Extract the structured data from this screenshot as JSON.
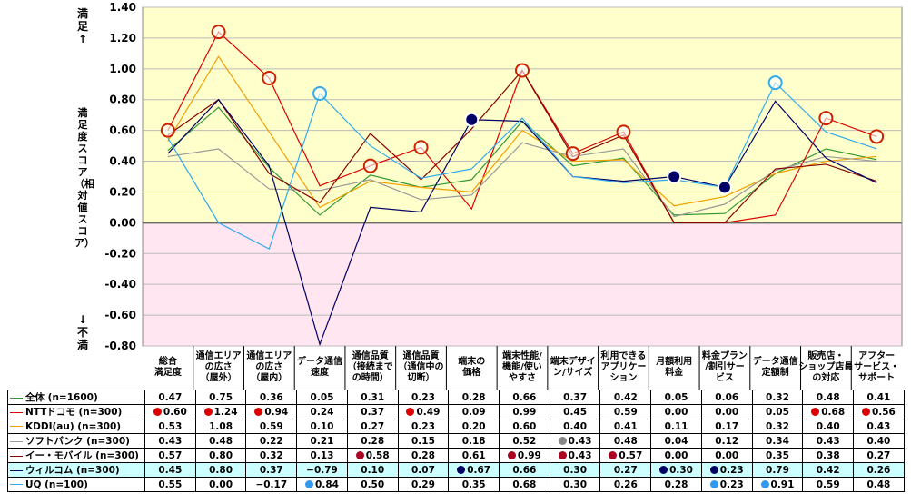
{
  "chart_data": {
    "type": "line",
    "ylabel_top": "満足↑",
    "ylabel_mid": "満足度スコア（相対値スコア）",
    "ylabel_bottom": "↓不満",
    "ylim": [
      -0.8,
      1.4
    ],
    "yticks": [
      "1.40",
      "1.20",
      "1.00",
      "0.80",
      "0.60",
      "0.40",
      "0.20",
      "0.00",
      "-0.20",
      "-0.40",
      "-0.60",
      "-0.80"
    ],
    "categories": [
      "総合満足度",
      "通信エリアの広さ（屋外）",
      "通信エリアの広さ（屋内）",
      "データ通信速度",
      "通信品質（接続までの時間）",
      "通信品質（通信中の切断）",
      "端末の価格",
      "端末性能/機能/使いやすさ",
      "端末デザイン/サイズ",
      "利用できるアプリケーション",
      "月額利用料金",
      "料金プラン/割引サービス",
      "データ通信定額制",
      "販売店・ショップ店員の対応",
      "アフターサービス・サポート"
    ],
    "categories_display": [
      "総合\n満足度",
      "通信エリア\nの広さ\n（屋外）",
      "通信エリア\nの広さ\n（屋内）",
      "データ通信\n速度",
      "通信品質\n（接続まで\nの時間）",
      "通信品質\n（通信中の\n切断）",
      "端末の\n価格",
      "端末性能/\n機能/使い\nやすさ",
      "端末デザイ\nン/サイズ",
      "利用できる\nアプリケー\nション",
      "月額利用\n料金",
      "料金プラン\n/割引サー\nビス",
      "データ通信\n定額制",
      "販売店・\nショップ店員\nの対応",
      "アフター\nサービス・\nサポート"
    ],
    "series": [
      {
        "name": "全体 (n=1600)",
        "color": "#339933",
        "values": [
          0.47,
          0.75,
          0.36,
          0.05,
          0.31,
          0.23,
          0.28,
          0.66,
          0.37,
          0.42,
          0.05,
          0.06,
          0.32,
          0.48,
          0.41
        ],
        "labels": [
          "0.47",
          "0.75",
          "0.36",
          "0.05",
          "0.31",
          "0.23",
          "0.28",
          "0.66",
          "0.37",
          "0.42",
          "0.05",
          "0.06",
          "0.32",
          "0.48",
          "0.41"
        ],
        "markers": []
      },
      {
        "name": "NTTドコモ (n=300)",
        "color": "#dd0000",
        "values": [
          0.6,
          1.24,
          0.94,
          0.24,
          0.37,
          0.49,
          0.09,
          0.99,
          0.45,
          0.59,
          0.0,
          0.0,
          0.05,
          0.68,
          0.56
        ],
        "labels": [
          "0.60",
          "1.24",
          "0.94",
          "0.24",
          "0.37",
          "0.49",
          "0.09",
          "0.99",
          "0.45",
          "0.59",
          "0.00",
          "0.00",
          "0.05",
          "0.68",
          "0.56"
        ],
        "markers": [
          0,
          1,
          2,
          5,
          13,
          14
        ]
      },
      {
        "name": "KDDI(au) (n=300)",
        "color": "#f0a000",
        "values": [
          0.53,
          1.08,
          0.59,
          0.1,
          0.27,
          0.23,
          0.2,
          0.6,
          0.4,
          0.41,
          0.11,
          0.17,
          0.32,
          0.4,
          0.43
        ],
        "labels": [
          "0.53",
          "1.08",
          "0.59",
          "0.10",
          "0.27",
          "0.23",
          "0.20",
          "0.60",
          "0.40",
          "0.41",
          "0.11",
          "0.17",
          "0.32",
          "0.40",
          "0.43"
        ],
        "markers": []
      },
      {
        "name": "ソフトバンク (n=300)",
        "color": "#999999",
        "values": [
          0.43,
          0.48,
          0.22,
          0.21,
          0.28,
          0.15,
          0.18,
          0.52,
          0.43,
          0.48,
          0.04,
          0.12,
          0.34,
          0.43,
          0.4
        ],
        "labels": [
          "0.43",
          "0.48",
          "0.22",
          "0.21",
          "0.28",
          "0.15",
          "0.18",
          "0.52",
          "0.43",
          "0.48",
          "0.04",
          "0.12",
          "0.34",
          "0.43",
          "0.40"
        ],
        "markers": [
          8
        ]
      },
      {
        "name": "イー・モバイル (n=300)",
        "color": "#880000",
        "values": [
          0.57,
          0.8,
          0.32,
          0.13,
          0.58,
          0.28,
          0.61,
          0.99,
          0.43,
          0.57,
          0.0,
          0.0,
          0.35,
          0.38,
          0.27
        ],
        "labels": [
          "0.57",
          "0.80",
          "0.32",
          "0.13",
          "0.58",
          "0.28",
          "0.61",
          "0.99",
          "0.43",
          "0.57",
          "0.00",
          "0.00",
          "0.35",
          "0.38",
          "0.27"
        ],
        "markers": [
          4,
          7,
          8,
          9
        ]
      },
      {
        "name": "ウィルコム (n=300)",
        "color": "#000066",
        "values": [
          0.45,
          0.8,
          0.37,
          -0.79,
          0.1,
          0.07,
          0.67,
          0.66,
          0.3,
          0.27,
          0.3,
          0.23,
          0.79,
          0.42,
          0.26
        ],
        "labels": [
          "0.45",
          "0.80",
          "0.37",
          "−0.79",
          "0.10",
          "0.07",
          "0.67",
          "0.66",
          "0.30",
          "0.27",
          "0.30",
          "0.23",
          "0.79",
          "0.42",
          "0.26"
        ],
        "markers": [
          6,
          10,
          11
        ]
      },
      {
        "name": "UQ (n=100)",
        "color": "#33aaee",
        "values": [
          0.55,
          0.0,
          -0.17,
          0.84,
          0.5,
          0.29,
          0.35,
          0.68,
          0.3,
          0.26,
          0.28,
          0.23,
          0.91,
          0.59,
          0.48
        ],
        "labels": [
          "0.55",
          "0.00",
          "−0.17",
          "0.84",
          "0.50",
          "0.29",
          "0.35",
          "0.68",
          "0.30",
          "0.26",
          "0.28",
          "0.23",
          "0.91",
          "0.59",
          "0.48"
        ],
        "markers": [
          3,
          11,
          12
        ]
      }
    ],
    "circled": [
      {
        "series": 1,
        "index": 0
      },
      {
        "series": 1,
        "index": 1
      },
      {
        "series": 1,
        "index": 2
      },
      {
        "series": 1,
        "index": 4
      },
      {
        "series": 1,
        "index": 5
      },
      {
        "series": 1,
        "index": 7
      },
      {
        "series": 1,
        "index": 8
      },
      {
        "series": 1,
        "index": 9
      },
      {
        "series": 1,
        "index": 13
      },
      {
        "series": 1,
        "index": 14
      },
      {
        "series": 5,
        "index": 6
      },
      {
        "series": 5,
        "index": 10
      },
      {
        "series": 5,
        "index": 11
      },
      {
        "series": 6,
        "index": 3
      },
      {
        "series": 6,
        "index": 12
      }
    ],
    "colors": {
      "positive_bg": "#ffffcc",
      "negative_bg": "#ffe6f0",
      "circle_red": "#cc2200",
      "circle_navy": "#000066",
      "circle_blue": "#33aaee"
    }
  }
}
